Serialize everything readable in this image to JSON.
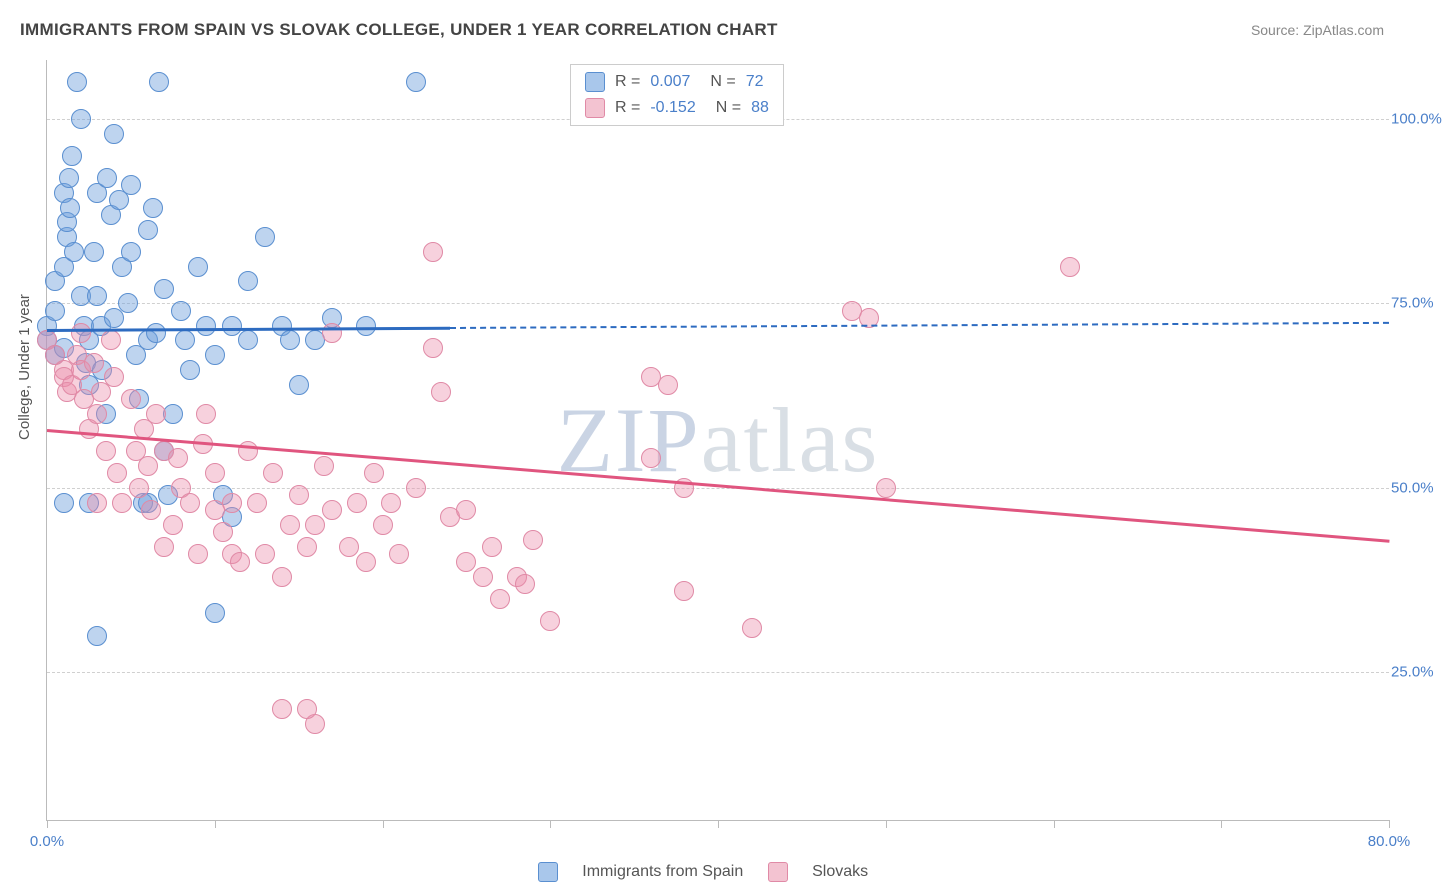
{
  "title": "IMMIGRANTS FROM SPAIN VS SLOVAK COLLEGE, UNDER 1 YEAR CORRELATION CHART",
  "source": "Source: ZipAtlas.com",
  "watermark_a": "ZIP",
  "watermark_b": "atlas",
  "y_axis_title": "College, Under 1 year",
  "chart": {
    "type": "scatter",
    "background_color": "#ffffff",
    "grid_color": "#d0d0d0",
    "axis_color": "#bbbbbb",
    "label_color": "#4a7fc9",
    "title_color": "#444444",
    "title_fontsize": 17,
    "label_fontsize": 15,
    "marker_size": 18,
    "marker_opacity": 0.5,
    "xlim": [
      0,
      80
    ],
    "ylim": [
      5,
      108
    ],
    "y_gridlines": [
      25,
      50,
      75,
      100
    ],
    "y_tick_labels": [
      "25.0%",
      "50.0%",
      "75.0%",
      "100.0%"
    ],
    "x_ticks": [
      0,
      10,
      20,
      30,
      40,
      50,
      60,
      70,
      80
    ],
    "x_min_label": "0.0%",
    "x_max_label": "80.0%"
  },
  "series": [
    {
      "name": "Immigrants from Spain",
      "color_fill": "rgba(110,160,220,0.45)",
      "color_stroke": "#5a8fd0",
      "swatch_fill": "#a9c7eb",
      "swatch_stroke": "#5a8fd0",
      "R": "0.007",
      "N": "72",
      "trend": {
        "x1": 0,
        "y1": 71.5,
        "x2": 24,
        "y2": 71.8,
        "width": 3,
        "dashed": false,
        "color": "#2d6bc0",
        "ext_x2": 80,
        "ext_y2": 72.5,
        "ext_dashed": true
      },
      "points": [
        [
          0,
          72
        ],
        [
          0,
          70
        ],
        [
          0.5,
          68
        ],
        [
          0.5,
          74
        ],
        [
          0.5,
          78
        ],
        [
          1,
          80
        ],
        [
          1,
          90
        ],
        [
          1.2,
          84
        ],
        [
          1.2,
          86
        ],
        [
          1.3,
          92
        ],
        [
          1.4,
          88
        ],
        [
          1.5,
          95
        ],
        [
          1.6,
          82
        ],
        [
          1.8,
          105
        ],
        [
          2,
          100
        ],
        [
          2,
          76
        ],
        [
          2.2,
          72
        ],
        [
          2.3,
          67
        ],
        [
          2.5,
          64
        ],
        [
          2.5,
          70
        ],
        [
          2.8,
          82
        ],
        [
          3,
          90
        ],
        [
          3,
          76
        ],
        [
          3.2,
          72
        ],
        [
          3.3,
          66
        ],
        [
          3.5,
          60
        ],
        [
          3.6,
          92
        ],
        [
          3.8,
          87
        ],
        [
          4,
          98
        ],
        [
          4,
          73
        ],
        [
          4.3,
          89
        ],
        [
          4.5,
          80
        ],
        [
          4.8,
          75
        ],
        [
          5,
          82
        ],
        [
          5,
          91
        ],
        [
          5.3,
          68
        ],
        [
          5.5,
          62
        ],
        [
          5.7,
          48
        ],
        [
          6,
          70
        ],
        [
          6,
          85
        ],
        [
          6.3,
          88
        ],
        [
          6.5,
          71
        ],
        [
          6.7,
          105
        ],
        [
          7,
          77
        ],
        [
          7,
          55
        ],
        [
          7.2,
          49
        ],
        [
          7.5,
          60
        ],
        [
          8,
          74
        ],
        [
          8.2,
          70
        ],
        [
          8.5,
          66
        ],
        [
          9,
          80
        ],
        [
          9.5,
          72
        ],
        [
          10,
          68
        ],
        [
          10.5,
          49
        ],
        [
          10,
          33
        ],
        [
          11,
          72
        ],
        [
          11,
          46
        ],
        [
          12,
          70
        ],
        [
          12,
          78
        ],
        [
          13,
          84
        ],
        [
          14,
          72
        ],
        [
          14.5,
          70
        ],
        [
          15,
          64
        ],
        [
          16,
          70
        ],
        [
          17,
          73
        ],
        [
          19,
          72
        ],
        [
          22,
          105
        ],
        [
          1,
          48
        ],
        [
          3,
          30
        ],
        [
          6,
          48
        ],
        [
          2.5,
          48
        ],
        [
          1,
          69
        ]
      ]
    },
    {
      "name": "Slovaks",
      "color_fill": "rgba(235,140,170,0.40)",
      "color_stroke": "#e08aa6",
      "swatch_fill": "#f3c3d1",
      "swatch_stroke": "#e08aa6",
      "R": "-0.152",
      "N": "88",
      "trend": {
        "x1": 0,
        "y1": 58,
        "x2": 80,
        "y2": 43,
        "width": 3,
        "dashed": false,
        "color": "#e0557f"
      },
      "points": [
        [
          0,
          70
        ],
        [
          0.5,
          68
        ],
        [
          1,
          66
        ],
        [
          1,
          65
        ],
        [
          1.2,
          63
        ],
        [
          1.5,
          64
        ],
        [
          1.8,
          68
        ],
        [
          2,
          71
        ],
        [
          2,
          66
        ],
        [
          2.2,
          62
        ],
        [
          2.5,
          58
        ],
        [
          2.8,
          67
        ],
        [
          3,
          60
        ],
        [
          3.2,
          63
        ],
        [
          3.5,
          55
        ],
        [
          3.8,
          70
        ],
        [
          4,
          65
        ],
        [
          4.2,
          52
        ],
        [
          4.5,
          48
        ],
        [
          5,
          62
        ],
        [
          5.3,
          55
        ],
        [
          5.5,
          50
        ],
        [
          5.8,
          58
        ],
        [
          6,
          53
        ],
        [
          6.2,
          47
        ],
        [
          6.5,
          60
        ],
        [
          7,
          55
        ],
        [
          7,
          42
        ],
        [
          7.5,
          45
        ],
        [
          7.8,
          54
        ],
        [
          8,
          50
        ],
        [
          8.5,
          48
        ],
        [
          9,
          41
        ],
        [
          9.3,
          56
        ],
        [
          9.5,
          60
        ],
        [
          10,
          52
        ],
        [
          10,
          47
        ],
        [
          10.5,
          44
        ],
        [
          11,
          48
        ],
        [
          11,
          41
        ],
        [
          11.5,
          40
        ],
        [
          12,
          55
        ],
        [
          12.5,
          48
        ],
        [
          13,
          41
        ],
        [
          13.5,
          52
        ],
        [
          14,
          38
        ],
        [
          14,
          20
        ],
        [
          14.5,
          45
        ],
        [
          15,
          49
        ],
        [
          15.5,
          42
        ],
        [
          16,
          18
        ],
        [
          16,
          45
        ],
        [
          16.5,
          53
        ],
        [
          17,
          47
        ],
        [
          17,
          71
        ],
        [
          18,
          42
        ],
        [
          18.5,
          48
        ],
        [
          19,
          40
        ],
        [
          19.5,
          52
        ],
        [
          20,
          45
        ],
        [
          20.5,
          48
        ],
        [
          21,
          41
        ],
        [
          22,
          50
        ],
        [
          23,
          69
        ],
        [
          23,
          82
        ],
        [
          23.5,
          63
        ],
        [
          24,
          46
        ],
        [
          25,
          40
        ],
        [
          25,
          47
        ],
        [
          26,
          38
        ],
        [
          26.5,
          42
        ],
        [
          27,
          35
        ],
        [
          28,
          38
        ],
        [
          28.5,
          37
        ],
        [
          29,
          43
        ],
        [
          30,
          32
        ],
        [
          36,
          54
        ],
        [
          36,
          65
        ],
        [
          37,
          64
        ],
        [
          38,
          50
        ],
        [
          38,
          36
        ],
        [
          42,
          31
        ],
        [
          48,
          74
        ],
        [
          49,
          73
        ],
        [
          50,
          50
        ],
        [
          61,
          80
        ],
        [
          15.5,
          20
        ],
        [
          3,
          48
        ]
      ]
    }
  ],
  "legend_bottom": {
    "s1": "Immigrants from Spain",
    "s2": "Slovaks"
  }
}
